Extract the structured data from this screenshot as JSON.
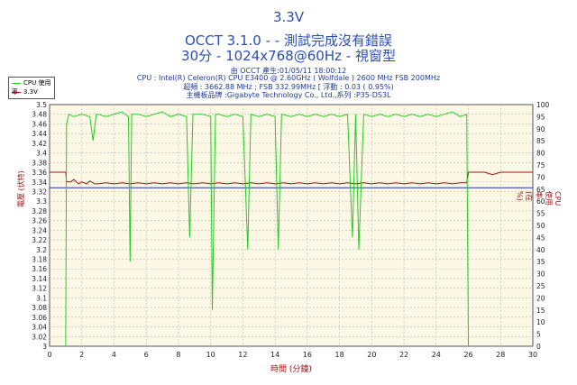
{
  "header": {
    "title": "3.3V",
    "line1": "OCCT 3.1.0 -  - 測試完成沒有錯誤",
    "line2": "30分 - 1024x768@60Hz - 視窗型",
    "sub1": "由 OCCT 產生:01/05/11 18:00:12",
    "sub2": "CPU : Intel(R) Celeron(R) CPU E3400 @ 2.60GHz ( Wolfdale ) 2600 MHz FSB 200MHz",
    "sub3": "超頻 : 3662.88 MHz ; FSB 332.99MHz [ 浮動 : 0.03 ( 0.95%)",
    "sub4": "主機板品牌 :Gigabyte Technology Co., Ltd.,系列 :P35-DS3L"
  },
  "legend": {
    "cpu": "CPU 使用率",
    "v33": "3.3V"
  },
  "colors": {
    "cpu": "#22cc22",
    "v33": "#a01010",
    "avg": "#2233aa",
    "plot_bg": "#fdf8e6",
    "grid": "#b8b8b8"
  },
  "chart_data": {
    "type": "line",
    "xlabel": "時間 (分鐘)",
    "ylabel_left": "電壓 (伏特)",
    "ylabel_right": "CPU 使用率(在 %)",
    "xlim": [
      0,
      30
    ],
    "ylim_left": [
      3.0,
      3.5
    ],
    "ylim_right": [
      0,
      100
    ],
    "x_ticks": [
      0,
      2,
      4,
      6,
      8,
      10,
      12,
      14,
      16,
      18,
      20,
      22,
      24,
      26,
      28,
      30
    ],
    "y_ticks_left": [
      3.0,
      3.02,
      3.04,
      3.06,
      3.08,
      3.1,
      3.12,
      3.14,
      3.16,
      3.18,
      3.2,
      3.22,
      3.24,
      3.26,
      3.28,
      3.3,
      3.32,
      3.34,
      3.36,
      3.38,
      3.4,
      3.42,
      3.44,
      3.46,
      3.48,
      3.5
    ],
    "y_ticks_right": [
      0,
      5,
      10,
      15,
      20,
      25,
      30,
      35,
      40,
      45,
      50,
      55,
      60,
      65,
      70,
      75,
      80,
      85,
      90,
      95,
      100
    ],
    "average_line_3v3": 3.328,
    "series": [
      {
        "name": "3.3V",
        "axis": "left",
        "x": [
          0,
          1.0,
          1.05,
          1.3,
          1.5,
          1.8,
          2.0,
          2.3,
          2.5,
          2.8,
          3.0,
          3.5,
          4.0,
          4.5,
          5.0,
          5.5,
          6.0,
          6.5,
          7.0,
          7.5,
          8.0,
          8.5,
          9.0,
          9.5,
          10.0,
          10.5,
          11.0,
          11.5,
          12.0,
          12.5,
          13.0,
          13.5,
          14.0,
          14.5,
          15.0,
          15.5,
          16.0,
          16.5,
          17.0,
          17.5,
          18.0,
          18.5,
          19.0,
          19.5,
          20.0,
          20.5,
          21.0,
          21.5,
          22.0,
          22.5,
          23.0,
          23.5,
          24.0,
          24.5,
          25.0,
          25.5,
          25.9,
          26.0,
          26.5,
          27.0,
          27.5,
          28.0,
          29.0,
          30.0
        ],
        "y": [
          3.36,
          3.36,
          3.34,
          3.34,
          3.345,
          3.336,
          3.34,
          3.336,
          3.342,
          3.336,
          3.336,
          3.338,
          3.336,
          3.338,
          3.336,
          3.338,
          3.336,
          3.338,
          3.336,
          3.338,
          3.336,
          3.338,
          3.336,
          3.338,
          3.336,
          3.338,
          3.336,
          3.338,
          3.336,
          3.338,
          3.336,
          3.338,
          3.336,
          3.338,
          3.336,
          3.338,
          3.336,
          3.338,
          3.336,
          3.338,
          3.336,
          3.338,
          3.336,
          3.338,
          3.336,
          3.338,
          3.336,
          3.338,
          3.336,
          3.338,
          3.336,
          3.338,
          3.336,
          3.338,
          3.336,
          3.338,
          3.338,
          3.36,
          3.36,
          3.36,
          3.355,
          3.36,
          3.36,
          3.36
        ]
      },
      {
        "name": "CPU 使用率",
        "axis": "right",
        "x": [
          1.0,
          1.05,
          1.2,
          1.5,
          2.0,
          2.5,
          2.7,
          2.9,
          3.0,
          3.5,
          4.0,
          4.5,
          4.9,
          5.0,
          5.1,
          5.5,
          6.0,
          6.5,
          7.0,
          7.5,
          8.0,
          8.5,
          8.7,
          8.9,
          9.5,
          10.0,
          10.1,
          10.3,
          10.5,
          11.0,
          11.5,
          12.0,
          12.3,
          12.5,
          13.0,
          13.5,
          14.0,
          14.2,
          14.4,
          15.0,
          15.5,
          16.0,
          16.5,
          17.0,
          17.5,
          18.0,
          18.5,
          18.8,
          19.0,
          19.2,
          19.5,
          20.0,
          20.5,
          21.0,
          21.5,
          22.0,
          22.5,
          23.0,
          23.5,
          24.0,
          24.5,
          25.0,
          25.5,
          25.9,
          26.0
        ],
        "y": [
          0,
          92,
          96,
          95,
          96,
          95,
          85,
          96,
          96,
          95,
          96,
          97,
          95,
          35,
          96,
          96,
          95,
          96,
          97,
          95,
          96,
          95,
          45,
          96,
          96,
          95,
          15,
          96,
          96,
          95,
          96,
          95,
          40,
          96,
          95,
          96,
          95,
          40,
          96,
          95,
          96,
          95,
          96,
          95,
          96,
          95,
          96,
          45,
          96,
          40,
          96,
          95,
          96,
          95,
          96,
          95,
          96,
          95,
          96,
          95,
          96,
          97,
          95,
          96,
          0
        ]
      }
    ]
  }
}
